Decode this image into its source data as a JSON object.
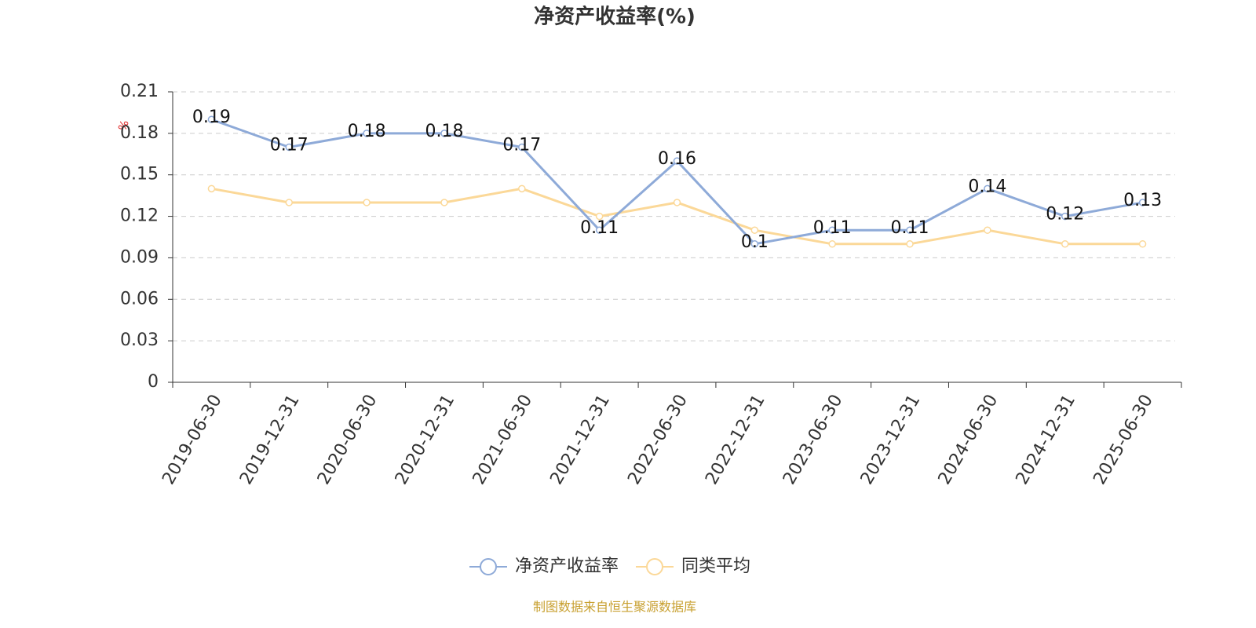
{
  "chart_data": {
    "type": "line",
    "title": "净资产收益率(%)",
    "y_unit": "%",
    "categories": [
      "2019-06-30",
      "2019-12-31",
      "2020-06-30",
      "2020-12-31",
      "2021-06-30",
      "2021-12-31",
      "2022-06-30",
      "2022-12-31",
      "2023-06-30",
      "2023-12-31",
      "2024-06-30",
      "2024-12-31",
      "2025-06-30"
    ],
    "series": [
      {
        "name": "净资产收益率",
        "color": "#8eaad8",
        "values": [
          0.19,
          0.17,
          0.18,
          0.18,
          0.17,
          0.11,
          0.16,
          0.1,
          0.11,
          0.11,
          0.14,
          0.12,
          0.13
        ],
        "data_labels": true
      },
      {
        "name": "同类平均",
        "color": "#fbd898",
        "values": [
          0.14,
          0.13,
          0.13,
          0.13,
          0.14,
          0.12,
          0.13,
          0.11,
          0.1,
          0.1,
          0.11,
          0.1,
          0.1
        ],
        "data_labels": false
      }
    ],
    "ylim": [
      0,
      0.21
    ],
    "yticks": [
      0,
      0.03,
      0.06,
      0.09,
      0.12,
      0.15,
      0.18,
      0.21
    ],
    "grid": true,
    "source": "制图数据来自恒生聚源数据库"
  }
}
